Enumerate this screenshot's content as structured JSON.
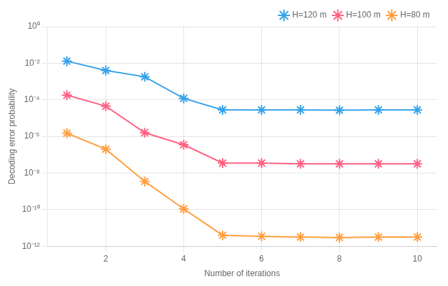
{
  "chart_data": {
    "type": "line",
    "xlabel": "Number of iterations",
    "ylabel": "Decoding error probability",
    "x": [
      1,
      2,
      3,
      4,
      5,
      6,
      7,
      8,
      9,
      10
    ],
    "series": [
      {
        "name": "H=120 m",
        "values": [
          0.013,
          0.004,
          0.0018,
          0.00012,
          2.8e-05,
          2.8e-05,
          2.8e-05,
          2.7e-05,
          2.8e-05,
          2.8e-05
        ]
      },
      {
        "name": "H=100 m",
        "values": [
          0.00018,
          4.5e-05,
          1.6e-06,
          3.5e-07,
          3.5e-08,
          3.5e-08,
          3.2e-08,
          3.2e-08,
          3.2e-08,
          3.2e-08
        ]
      },
      {
        "name": "H=80 m",
        "values": [
          1.5e-06,
          2e-07,
          3.5e-09,
          1.1e-10,
          4e-12,
          3.5e-12,
          3.2e-12,
          3e-12,
          3.2e-12,
          3.2e-12
        ]
      }
    ],
    "xlim": [
      0.5,
      10.5
    ],
    "xticks": [
      2,
      4,
      6,
      8,
      10
    ],
    "ylim": [
      1e-12,
      1
    ],
    "yticks": [
      {
        "value": 1e-12,
        "label": "10⁻¹²"
      },
      {
        "value": 1e-10,
        "label": "10⁻¹⁰"
      },
      {
        "value": 1e-08,
        "label": "10⁻⁸"
      },
      {
        "value": 1e-06,
        "label": "10⁻⁶"
      },
      {
        "value": 0.0001,
        "label": "10⁻⁴"
      },
      {
        "value": 0.01,
        "label": "10⁻²"
      },
      {
        "value": 1,
        "label": "10⁰"
      }
    ],
    "log": "y",
    "grid": true,
    "legend": "upper right",
    "marker": "star"
  }
}
